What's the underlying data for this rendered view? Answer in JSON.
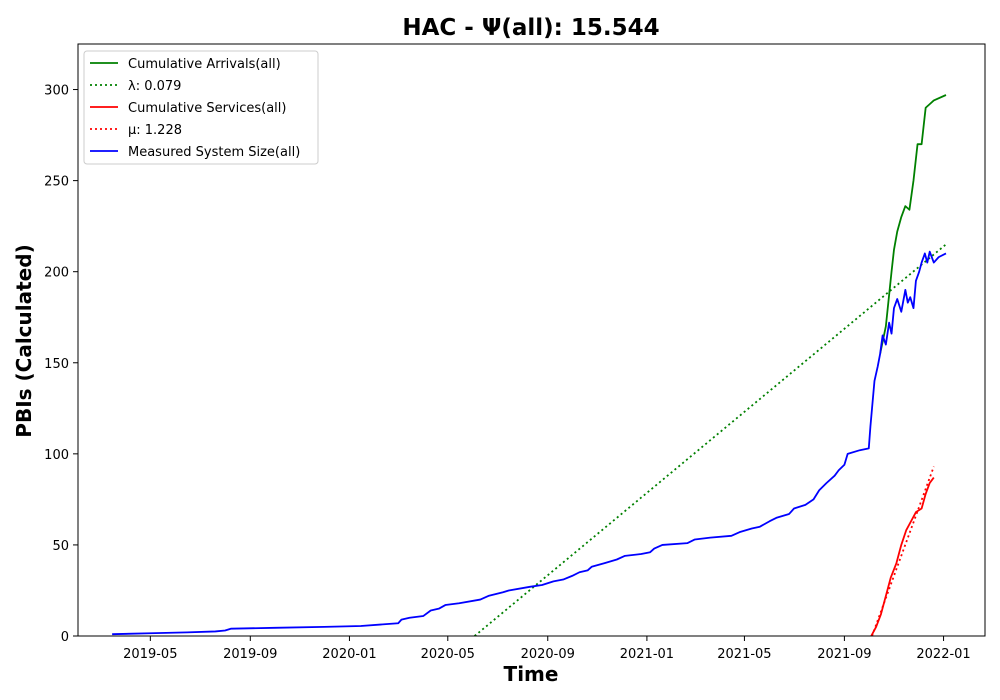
{
  "chart_data": {
    "type": "line",
    "title": "HAC -  Ψ(all): 15.544",
    "xlabel": "Time",
    "ylabel": "PBIs (Calculated)",
    "xlim": [
      "2019-02-01",
      "2022-02-21"
    ],
    "ylim": [
      0,
      325
    ],
    "x_ticks": [
      "2019-05",
      "2019-09",
      "2020-01",
      "2020-05",
      "2020-09",
      "2021-01",
      "2021-05",
      "2021-09",
      "2022-01"
    ],
    "y_ticks": [
      0,
      50,
      100,
      150,
      200,
      250,
      300
    ],
    "grid": false,
    "legend_position": "top-left",
    "legend": [
      {
        "label": "Cumulative Arrivals(all)",
        "color": "#008000",
        "style": "solid"
      },
      {
        "label": "λ: 0.079",
        "color": "#008000",
        "style": "dotted"
      },
      {
        "label": "Cumulative Services(all)",
        "color": "#ff0000",
        "style": "solid"
      },
      {
        "label": "μ: 1.228",
        "color": "#ff0000",
        "style": "dotted"
      },
      {
        "label": "Measured System Size(all)",
        "color": "#0000ff",
        "style": "solid"
      }
    ],
    "series": [
      {
        "name": "Cumulative Arrivals(all)",
        "color": "#008000",
        "style": "solid",
        "points": [
          [
            "2021-10-15",
            155
          ],
          [
            "2021-10-22",
            170
          ],
          [
            "2021-10-29",
            200
          ],
          [
            "2021-11-01",
            212
          ],
          [
            "2021-11-05",
            222
          ],
          [
            "2021-11-10",
            230
          ],
          [
            "2021-11-15",
            236
          ],
          [
            "2021-11-20",
            234
          ],
          [
            "2021-11-25",
            250
          ],
          [
            "2021-11-30",
            270
          ],
          [
            "2021-12-05",
            270
          ],
          [
            "2021-12-10",
            290
          ],
          [
            "2021-12-15",
            292
          ],
          [
            "2021-12-20",
            294
          ],
          [
            "2022-01-04",
            297
          ]
        ]
      },
      {
        "name": "λ: 0.079",
        "color": "#008000",
        "style": "dotted",
        "points": [
          [
            "2020-06-03",
            0
          ],
          [
            "2022-01-04",
            215
          ]
        ]
      },
      {
        "name": "Cumulative Services(all)",
        "color": "#ff0000",
        "style": "solid",
        "points": [
          [
            "2021-10-04",
            0
          ],
          [
            "2021-10-10",
            5
          ],
          [
            "2021-10-16",
            12
          ],
          [
            "2021-10-22",
            22
          ],
          [
            "2021-10-28",
            32
          ],
          [
            "2021-11-04",
            40
          ],
          [
            "2021-11-10",
            50
          ],
          [
            "2021-11-16",
            58
          ],
          [
            "2021-11-22",
            63
          ],
          [
            "2021-11-28",
            68
          ],
          [
            "2021-12-05",
            70
          ],
          [
            "2021-12-10",
            78
          ],
          [
            "2021-12-15",
            84
          ],
          [
            "2021-12-20",
            87
          ]
        ]
      },
      {
        "name": "μ: 1.228",
        "color": "#ff0000",
        "style": "dotted",
        "points": [
          [
            "2021-10-05",
            0
          ],
          [
            "2021-12-20",
            93
          ]
        ]
      },
      {
        "name": "Measured System Size(all)",
        "color": "#0000ff",
        "style": "solid",
        "points": [
          [
            "2019-03-15",
            1
          ],
          [
            "2019-05-01",
            1.5
          ],
          [
            "2019-06-15",
            2
          ],
          [
            "2019-07-20",
            2.5
          ],
          [
            "2019-08-01",
            3
          ],
          [
            "2019-08-08",
            4
          ],
          [
            "2019-10-01",
            4.5
          ],
          [
            "2019-12-01",
            5
          ],
          [
            "2020-01-15",
            5.5
          ],
          [
            "2020-02-15",
            6.5
          ],
          [
            "2020-03-01",
            7
          ],
          [
            "2020-03-05",
            9
          ],
          [
            "2020-03-15",
            10
          ],
          [
            "2020-04-01",
            11
          ],
          [
            "2020-04-10",
            14
          ],
          [
            "2020-04-20",
            15
          ],
          [
            "2020-04-28",
            17
          ],
          [
            "2020-05-15",
            18
          ],
          [
            "2020-06-10",
            20
          ],
          [
            "2020-06-20",
            22
          ],
          [
            "2020-07-08",
            24
          ],
          [
            "2020-07-15",
            25
          ],
          [
            "2020-08-10",
            27
          ],
          [
            "2020-08-25",
            28
          ],
          [
            "2020-09-08",
            30
          ],
          [
            "2020-09-20",
            31
          ],
          [
            "2020-10-01",
            33
          ],
          [
            "2020-10-10",
            35
          ],
          [
            "2020-10-20",
            36
          ],
          [
            "2020-10-25",
            38
          ],
          [
            "2020-11-10",
            40
          ],
          [
            "2020-11-25",
            42
          ],
          [
            "2020-12-05",
            44
          ],
          [
            "2020-12-25",
            45
          ],
          [
            "2021-01-05",
            46
          ],
          [
            "2021-01-10",
            48
          ],
          [
            "2021-01-20",
            50
          ],
          [
            "2021-02-20",
            51
          ],
          [
            "2021-03-01",
            53
          ],
          [
            "2021-03-20",
            54
          ],
          [
            "2021-04-15",
            55
          ],
          [
            "2021-04-25",
            57
          ],
          [
            "2021-05-10",
            59
          ],
          [
            "2021-05-20",
            60
          ],
          [
            "2021-06-01",
            63
          ],
          [
            "2021-06-10",
            65
          ],
          [
            "2021-06-25",
            67
          ],
          [
            "2021-07-01",
            70
          ],
          [
            "2021-07-15",
            72
          ],
          [
            "2021-07-25",
            75
          ],
          [
            "2021-08-01",
            80
          ],
          [
            "2021-08-10",
            84
          ],
          [
            "2021-08-20",
            88
          ],
          [
            "2021-08-25",
            91
          ],
          [
            "2021-09-01",
            94
          ],
          [
            "2021-09-05",
            100
          ],
          [
            "2021-09-20",
            102
          ],
          [
            "2021-10-01",
            103
          ],
          [
            "2021-10-03",
            115
          ],
          [
            "2021-10-05",
            125
          ],
          [
            "2021-10-08",
            140
          ],
          [
            "2021-10-12",
            148
          ],
          [
            "2021-10-15",
            155
          ],
          [
            "2021-10-18",
            165
          ],
          [
            "2021-10-22",
            160
          ],
          [
            "2021-10-26",
            172
          ],
          [
            "2021-10-29",
            166
          ],
          [
            "2021-11-01",
            180
          ],
          [
            "2021-11-05",
            185
          ],
          [
            "2021-11-10",
            178
          ],
          [
            "2021-11-15",
            190
          ],
          [
            "2021-11-18",
            183
          ],
          [
            "2021-11-21",
            186
          ],
          [
            "2021-11-25",
            180
          ],
          [
            "2021-11-28",
            195
          ],
          [
            "2021-12-02",
            200
          ],
          [
            "2021-12-05",
            205
          ],
          [
            "2021-12-09",
            210
          ],
          [
            "2021-12-12",
            205
          ],
          [
            "2021-12-15",
            211
          ],
          [
            "2021-12-20",
            205
          ],
          [
            "2021-12-26",
            208
          ],
          [
            "2022-01-04",
            210
          ]
        ]
      }
    ]
  }
}
